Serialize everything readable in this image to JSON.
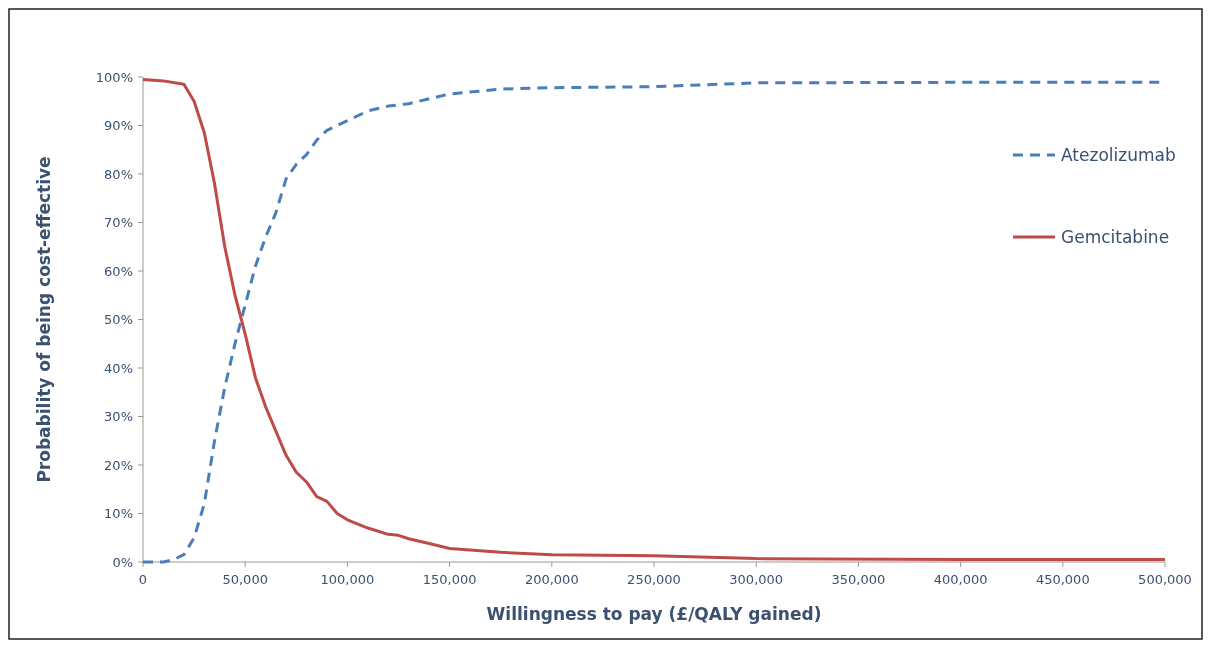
{
  "chart_data": {
    "type": "line",
    "xlabel": "Willingness to pay (£/QALY gained)",
    "ylabel": "Probability of being cost-effective",
    "xlim": [
      0,
      500000
    ],
    "xticks": [
      {
        "value": 0,
        "label": "0"
      },
      {
        "value": 50000,
        "label": "50,000"
      },
      {
        "value": 100000,
        "label": "100,000"
      },
      {
        "value": 150000,
        "label": "150,000"
      },
      {
        "value": 200000,
        "label": "200,000"
      },
      {
        "value": 250000,
        "label": "250,000"
      },
      {
        "value": 300000,
        "label": "300,000"
      },
      {
        "value": 350000,
        "label": "350,000"
      },
      {
        "value": 400000,
        "label": "400,000"
      },
      {
        "value": 450000,
        "label": "450,000"
      },
      {
        "value": 500000,
        "label": "500,000"
      }
    ],
    "ylim": [
      0,
      1
    ],
    "yticks": [
      {
        "value": 0,
        "label": "0%"
      },
      {
        "value": 0.1,
        "label": "10%"
      },
      {
        "value": 0.2,
        "label": "20%"
      },
      {
        "value": 0.3,
        "label": "30%"
      },
      {
        "value": 0.4,
        "label": "40%"
      },
      {
        "value": 0.5,
        "label": "50%"
      },
      {
        "value": 0.6,
        "label": "60%"
      },
      {
        "value": 0.7,
        "label": "70%"
      },
      {
        "value": 0.8,
        "label": "80%"
      },
      {
        "value": 0.9,
        "label": "90%"
      },
      {
        "value": 1,
        "label": "100%"
      }
    ],
    "grid": false,
    "legend": "right",
    "series": [
      {
        "name": "Atezolizumab",
        "color": "#4a7ebb",
        "line_style": "dashed",
        "x": [
          0,
          10000,
          15000,
          20000,
          25000,
          30000,
          35000,
          40000,
          45000,
          50000,
          55000,
          60000,
          65000,
          70000,
          75000,
          80000,
          85000,
          90000,
          100000,
          110000,
          120000,
          130000,
          150000,
          175000,
          200000,
          250000,
          300000,
          400000,
          500000
        ],
        "values": [
          0,
          0,
          0.005,
          0.015,
          0.05,
          0.12,
          0.25,
          0.36,
          0.45,
          0.53,
          0.61,
          0.67,
          0.72,
          0.79,
          0.82,
          0.84,
          0.87,
          0.89,
          0.91,
          0.93,
          0.94,
          0.945,
          0.965,
          0.975,
          0.978,
          0.98,
          0.988,
          0.989,
          0.989
        ]
      },
      {
        "name": "Gemcitabine",
        "color": "#be4b48",
        "line_style": "solid",
        "x": [
          0,
          10000,
          20000,
          25000,
          30000,
          35000,
          40000,
          45000,
          50000,
          55000,
          60000,
          65000,
          70000,
          75000,
          80000,
          85000,
          90000,
          95000,
          100000,
          110000,
          120000,
          125000,
          130000,
          140000,
          150000,
          175000,
          200000,
          250000,
          300000,
          400000,
          500000
        ],
        "values": [
          0.995,
          0.992,
          0.985,
          0.95,
          0.885,
          0.78,
          0.65,
          0.55,
          0.47,
          0.38,
          0.32,
          0.27,
          0.22,
          0.185,
          0.165,
          0.135,
          0.125,
          0.1,
          0.087,
          0.07,
          0.057,
          0.055,
          0.048,
          0.038,
          0.028,
          0.02,
          0.015,
          0.013,
          0.007,
          0.005,
          0.005
        ]
      }
    ]
  }
}
